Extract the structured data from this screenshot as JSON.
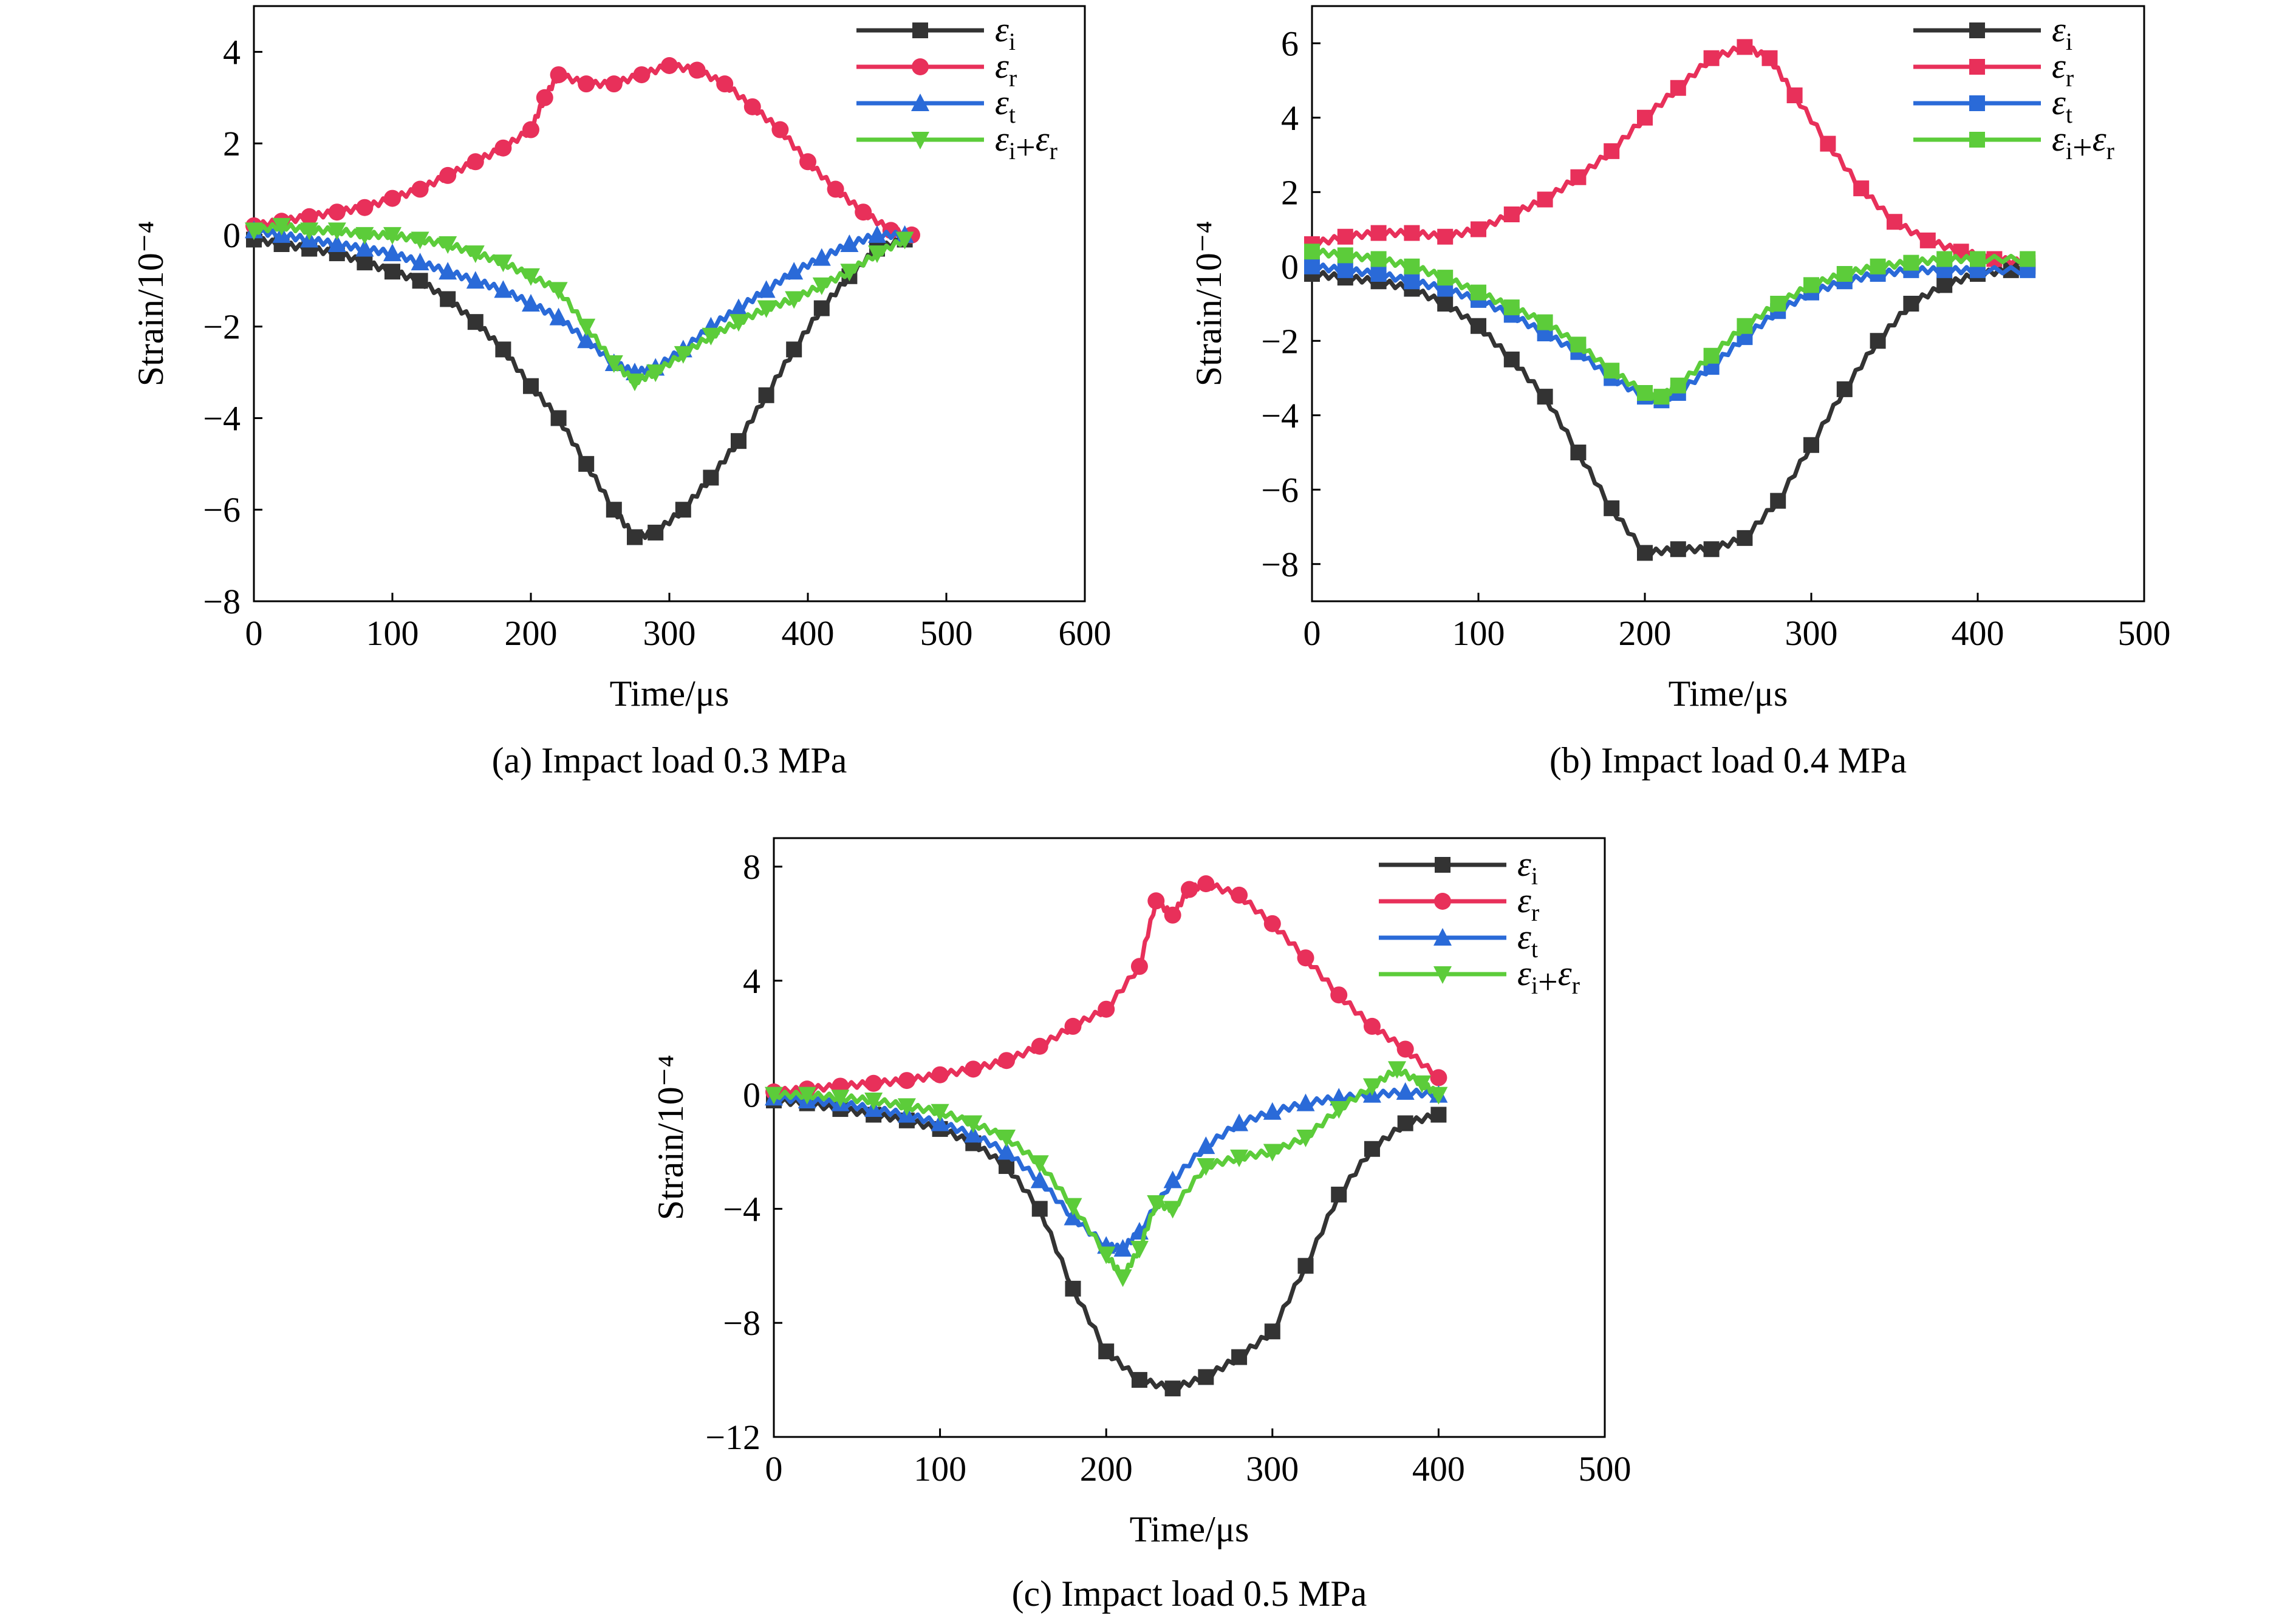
{
  "figure": {
    "chart_data": [
      {
        "type": "line",
        "caption": "(a) Impact load 0.3 MPa",
        "xlabel": "Time/μs",
        "ylabel": "Strain/10⁻⁴",
        "xlim": [
          0,
          600
        ],
        "ylim": [
          -8,
          5
        ],
        "xticks": [
          0,
          100,
          200,
          300,
          400,
          500,
          600
        ],
        "yticks": [
          -8,
          -6,
          -4,
          -2,
          0,
          2,
          4
        ],
        "legend_position": "top-right",
        "series": [
          {
            "name": "εi",
            "color": "#333333",
            "marker": "square",
            "x": [
              0,
              20,
              40,
              60,
              80,
              100,
              120,
              140,
              160,
              180,
              200,
              220,
              240,
              260,
              275,
              290,
              310,
              330,
              350,
              370,
              390,
              410,
              430,
              450,
              470
            ],
            "y": [
              -0.1,
              -0.2,
              -0.3,
              -0.4,
              -0.6,
              -0.8,
              -1.0,
              -1.4,
              -1.9,
              -2.5,
              -3.3,
              -4.0,
              -5.0,
              -6.0,
              -6.6,
              -6.5,
              -6.0,
              -5.3,
              -4.5,
              -3.5,
              -2.5,
              -1.6,
              -0.9,
              -0.3,
              -0.1
            ]
          },
          {
            "name": "εr",
            "color": "#e8305a",
            "marker": "circle",
            "x": [
              0,
              20,
              40,
              60,
              80,
              100,
              120,
              140,
              160,
              180,
              200,
              210,
              220,
              240,
              260,
              280,
              300,
              320,
              340,
              360,
              380,
              400,
              420,
              440,
              460,
              475
            ],
            "y": [
              0.2,
              0.3,
              0.4,
              0.5,
              0.6,
              0.8,
              1.0,
              1.3,
              1.6,
              1.9,
              2.3,
              3.0,
              3.5,
              3.3,
              3.3,
              3.5,
              3.7,
              3.6,
              3.3,
              2.8,
              2.3,
              1.6,
              1.0,
              0.5,
              0.1,
              0.0
            ]
          },
          {
            "name": "εt",
            "color": "#2a6ad8",
            "marker": "triangle-up",
            "x": [
              0,
              20,
              40,
              60,
              80,
              100,
              120,
              140,
              160,
              180,
              200,
              220,
              240,
              260,
              275,
              290,
              310,
              330,
              350,
              370,
              390,
              410,
              430,
              450,
              470
            ],
            "y": [
              0.1,
              0.0,
              -0.1,
              -0.2,
              -0.3,
              -0.4,
              -0.6,
              -0.8,
              -1.0,
              -1.2,
              -1.5,
              -1.8,
              -2.3,
              -2.8,
              -3.0,
              -2.9,
              -2.5,
              -2.0,
              -1.6,
              -1.2,
              -0.8,
              -0.5,
              -0.2,
              0.0,
              0.0
            ]
          },
          {
            "name": "εi+εr",
            "color": "#5ccc3a",
            "marker": "triangle-down",
            "x": [
              0,
              20,
              40,
              60,
              80,
              100,
              120,
              140,
              160,
              180,
              200,
              220,
              240,
              260,
              275,
              290,
              310,
              330,
              350,
              370,
              390,
              410,
              430,
              450,
              470
            ],
            "y": [
              0.1,
              0.2,
              0.1,
              0.1,
              0.0,
              0.0,
              -0.1,
              -0.2,
              -0.4,
              -0.6,
              -0.9,
              -1.2,
              -2.0,
              -2.8,
              -3.2,
              -3.0,
              -2.6,
              -2.2,
              -1.9,
              -1.6,
              -1.4,
              -1.1,
              -0.8,
              -0.4,
              -0.1
            ]
          }
        ]
      },
      {
        "type": "line",
        "caption": "(b) Impact load 0.4 MPa",
        "xlabel": "Time/μs",
        "ylabel": "Strain/10⁻⁴",
        "xlim": [
          0,
          500
        ],
        "ylim": [
          -9,
          7
        ],
        "xticks": [
          0,
          100,
          200,
          300,
          400,
          500
        ],
        "yticks": [
          -8,
          -6,
          -4,
          -2,
          0,
          2,
          4,
          6
        ],
        "legend_position": "top-right",
        "series": [
          {
            "name": "εi",
            "color": "#333333",
            "marker": "square",
            "x": [
              0,
              20,
              40,
              60,
              80,
              100,
              120,
              140,
              160,
              180,
              200,
              220,
              240,
              260,
              280,
              300,
              320,
              340,
              360,
              380,
              400,
              420,
              430
            ],
            "y": [
              -0.2,
              -0.3,
              -0.4,
              -0.6,
              -1.0,
              -1.6,
              -2.5,
              -3.5,
              -5.0,
              -6.5,
              -7.7,
              -7.6,
              -7.6,
              -7.3,
              -6.3,
              -4.8,
              -3.3,
              -2.0,
              -1.0,
              -0.5,
              -0.2,
              -0.1,
              0.0
            ]
          },
          {
            "name": "εr",
            "color": "#e8305a",
            "marker": "square",
            "x": [
              0,
              20,
              40,
              60,
              80,
              100,
              120,
              140,
              160,
              180,
              200,
              220,
              240,
              260,
              275,
              290,
              310,
              330,
              350,
              370,
              390,
              410,
              430
            ],
            "y": [
              0.6,
              0.8,
              0.9,
              0.9,
              0.8,
              1.0,
              1.4,
              1.8,
              2.4,
              3.1,
              4.0,
              4.8,
              5.6,
              5.9,
              5.6,
              4.6,
              3.3,
              2.1,
              1.2,
              0.7,
              0.4,
              0.2,
              0.1
            ]
          },
          {
            "name": "εt",
            "color": "#2a6ad8",
            "marker": "square",
            "x": [
              0,
              20,
              40,
              60,
              80,
              100,
              120,
              140,
              160,
              180,
              200,
              210,
              220,
              240,
              260,
              280,
              300,
              320,
              340,
              360,
              380,
              400,
              430
            ],
            "y": [
              0.0,
              -0.1,
              -0.2,
              -0.4,
              -0.6,
              -0.9,
              -1.3,
              -1.8,
              -2.3,
              -3.0,
              -3.5,
              -3.6,
              -3.4,
              -2.7,
              -1.9,
              -1.2,
              -0.7,
              -0.4,
              -0.2,
              -0.1,
              -0.1,
              -0.1,
              -0.1
            ]
          },
          {
            "name": "εi+εr",
            "color": "#5ccc3a",
            "marker": "square",
            "x": [
              0,
              20,
              40,
              60,
              80,
              100,
              120,
              140,
              160,
              180,
              200,
              210,
              220,
              240,
              260,
              280,
              300,
              320,
              340,
              360,
              380,
              400,
              430
            ],
            "y": [
              0.4,
              0.3,
              0.2,
              0.0,
              -0.3,
              -0.7,
              -1.1,
              -1.5,
              -2.1,
              -2.8,
              -3.4,
              -3.5,
              -3.2,
              -2.4,
              -1.6,
              -1.0,
              -0.5,
              -0.2,
              0.0,
              0.1,
              0.2,
              0.2,
              0.2
            ]
          }
        ]
      },
      {
        "type": "line",
        "caption": "(c) Impact load 0.5 MPa",
        "xlabel": "Time/μs",
        "ylabel": "Strain/10⁻⁴",
        "xlim": [
          0,
          500
        ],
        "ylim": [
          -12,
          9
        ],
        "xticks": [
          0,
          100,
          200,
          300,
          400,
          500
        ],
        "yticks": [
          -12,
          -8,
          -4,
          0,
          4,
          8
        ],
        "legend_position": "top-right",
        "series": [
          {
            "name": "εi",
            "color": "#333333",
            "marker": "square",
            "x": [
              0,
              20,
              40,
              60,
              80,
              100,
              120,
              140,
              160,
              180,
              200,
              220,
              240,
              260,
              280,
              300,
              320,
              340,
              360,
              380,
              400
            ],
            "y": [
              -0.2,
              -0.3,
              -0.5,
              -0.7,
              -0.9,
              -1.2,
              -1.7,
              -2.5,
              -4.0,
              -6.8,
              -9.0,
              -10.0,
              -10.3,
              -9.9,
              -9.2,
              -8.3,
              -6.0,
              -3.5,
              -1.9,
              -1.0,
              -0.7
            ]
          },
          {
            "name": "εr",
            "color": "#e8305a",
            "marker": "circle",
            "x": [
              0,
              20,
              40,
              60,
              80,
              100,
              120,
              140,
              160,
              180,
              200,
              220,
              230,
              240,
              250,
              260,
              280,
              300,
              320,
              340,
              360,
              380,
              400
            ],
            "y": [
              0.1,
              0.2,
              0.3,
              0.4,
              0.5,
              0.7,
              0.9,
              1.2,
              1.7,
              2.4,
              3.0,
              4.5,
              6.8,
              6.3,
              7.2,
              7.4,
              7.0,
              6.0,
              4.8,
              3.5,
              2.4,
              1.6,
              0.6
            ]
          },
          {
            "name": "εt",
            "color": "#2a6ad8",
            "marker": "triangle-up",
            "x": [
              0,
              20,
              40,
              60,
              80,
              100,
              120,
              140,
              160,
              180,
              200,
              210,
              220,
              240,
              260,
              280,
              300,
              320,
              340,
              360,
              380,
              400
            ],
            "y": [
              -0.1,
              -0.2,
              -0.3,
              -0.5,
              -0.7,
              -1.0,
              -1.4,
              -2.0,
              -3.0,
              -4.3,
              -5.3,
              -5.4,
              -4.8,
              -3.0,
              -1.8,
              -1.0,
              -0.6,
              -0.3,
              -0.1,
              0.0,
              0.1,
              0.0
            ]
          },
          {
            "name": "εi+εr",
            "color": "#5ccc3a",
            "marker": "triangle-down",
            "x": [
              0,
              20,
              40,
              60,
              80,
              100,
              120,
              140,
              160,
              180,
              200,
              210,
              220,
              230,
              240,
              260,
              280,
              300,
              320,
              340,
              360,
              375,
              390,
              400
            ],
            "y": [
              0.0,
              0.0,
              -0.1,
              -0.2,
              -0.4,
              -0.6,
              -1.0,
              -1.5,
              -2.4,
              -3.9,
              -5.6,
              -6.4,
              -5.4,
              -3.8,
              -4.0,
              -2.5,
              -2.2,
              -2.0,
              -1.5,
              -0.5,
              0.3,
              0.9,
              0.4,
              0.0
            ]
          }
        ]
      }
    ]
  }
}
